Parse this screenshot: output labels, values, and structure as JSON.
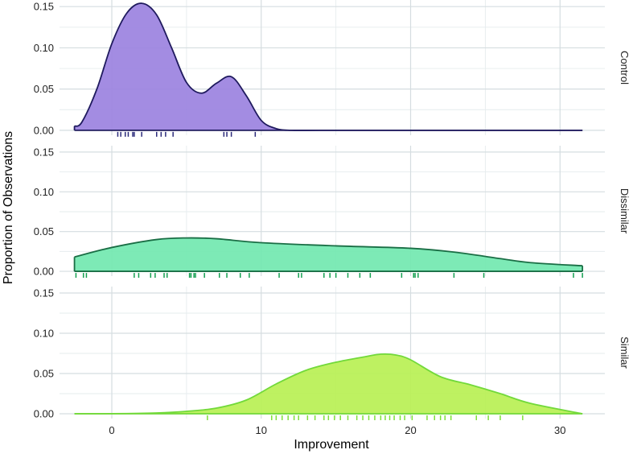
{
  "chart_data": {
    "type": "density",
    "xlabel": "Improvement",
    "ylabel": "Proportion of Observations",
    "xlim": [
      -3.5,
      33
    ],
    "ylim": [
      -0.006,
      0.158
    ],
    "x_ticks": [
      0,
      10,
      20,
      30
    ],
    "x_tick_labels": [
      "0",
      "10",
      "20",
      "30"
    ],
    "y_ticks": [
      0,
      0.05,
      0.1,
      0.15
    ],
    "y_tick_labels": [
      "0.00",
      "0.05",
      "0.10",
      "0.15"
    ],
    "grid": true,
    "facets": [
      {
        "label": "Control",
        "fill": "#9b82e0",
        "line": "#1f1a5e",
        "rug": "#2b2a7a",
        "x": [
          -2.5,
          -2,
          -1,
          0,
          1,
          2,
          3,
          4,
          5,
          6,
          7,
          8,
          9,
          10,
          11,
          12,
          14,
          20,
          31.5
        ],
        "y": [
          0.005,
          0.01,
          0.05,
          0.105,
          0.142,
          0.154,
          0.14,
          0.1,
          0.058,
          0.045,
          0.057,
          0.065,
          0.042,
          0.012,
          0.002,
          0.0,
          0.0,
          0.0,
          0.0
        ],
        "rug_x": [
          0.4,
          0.6,
          0.9,
          1.1,
          1.4,
          1.5,
          2.0,
          3.0,
          3.3,
          3.6,
          4.1,
          7.5,
          7.7,
          8.0,
          9.6
        ]
      },
      {
        "label": "Dissimilar",
        "fill": "#72e8b0",
        "line": "#1a6e45",
        "rug": "#14a050",
        "x": [
          -2.5,
          0,
          3,
          5,
          7,
          10,
          15,
          20,
          23,
          26,
          28,
          31.5
        ],
        "y": [
          0.018,
          0.03,
          0.04,
          0.042,
          0.041,
          0.036,
          0.032,
          0.029,
          0.024,
          0.016,
          0.011,
          0.007
        ],
        "rug_x": [
          -2.4,
          -1.9,
          -1.7,
          1.5,
          1.8,
          2.6,
          2.9,
          3.5,
          3.7,
          5.2,
          5.3,
          5.5,
          5.6,
          6.2,
          7.2,
          7.7,
          8.6,
          9.2,
          11.2,
          12.5,
          12.7,
          14.2,
          14.6,
          15.0,
          15.8,
          16.6,
          17.3,
          19.4,
          20.2,
          20.3,
          20.5,
          22.9,
          24.9,
          30.9,
          31.5
        ]
      },
      {
        "label": "Similar",
        "fill": "#b8f054",
        "line": "#72d93a",
        "rug": "#7ee038",
        "x": [
          -2.5,
          0,
          3,
          5,
          7,
          9,
          11,
          13,
          15,
          17,
          18,
          19,
          20,
          22,
          24,
          26,
          28,
          31.5
        ],
        "y": [
          0.0,
          0.0001,
          0.001,
          0.003,
          0.007,
          0.017,
          0.037,
          0.054,
          0.064,
          0.071,
          0.074,
          0.073,
          0.067,
          0.046,
          0.036,
          0.025,
          0.013,
          0.0
        ],
        "rug_x": [
          6.4,
          10.7,
          11.0,
          11.4,
          11.8,
          12.2,
          12.5,
          13.1,
          13.6,
          14.2,
          14.5,
          14.9,
          15.3,
          15.8,
          16.4,
          16.8,
          17.2,
          17.6,
          18.0,
          18.3,
          18.6,
          18.9,
          19.3,
          19.6,
          20.1,
          21.1,
          21.6,
          22.0,
          22.3,
          22.7,
          24.4,
          25.2,
          26.0,
          27.5
        ]
      }
    ]
  }
}
